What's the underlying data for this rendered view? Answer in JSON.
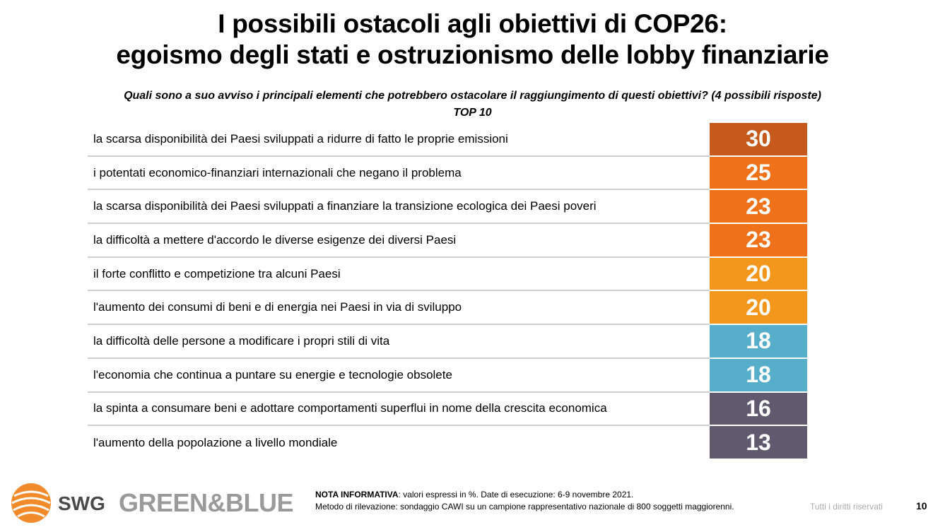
{
  "header": {
    "title_line1": "I possibili ostacoli agli obiettivi di COP26:",
    "title_line2": "egoismo degli stati e ostruzionismo delle lobby finanziarie",
    "question": "Quali sono a suo avviso i principali elementi che potrebbero ostacolare il raggiungimento di questi obiettivi? (4 possibili risposte)",
    "subtitle": "TOP 10"
  },
  "chart_data": {
    "type": "table",
    "title": "I possibili ostacoli agli obiettivi di COP26: egoismo degli stati e ostruzionismo delle lobby finanziarie",
    "categories": [
      "la scarsa disponibilità dei Paesi sviluppati a ridurre di fatto le proprie emissioni",
      "i potentati economico-finanziari internazionali che negano il problema",
      "la scarsa disponibilità dei Paesi sviluppati a finanziare la transizione ecologica dei Paesi poveri",
      "la difficoltà a mettere d'accordo le diverse esigenze dei diversi Paesi",
      "il forte conflitto e competizione tra alcuni Paesi",
      "l'aumento dei consumi di beni e di energia nei Paesi in via di sviluppo",
      "la difficoltà delle persone a modificare i propri stili di vita",
      "l'economia che continua a puntare su energie e tecnologie obsolete",
      "la spinta a consumare beni e adottare comportamenti superflui in nome della crescita economica",
      "l'aumento della popolazione a livello mondiale"
    ],
    "values": [
      30,
      25,
      23,
      23,
      20,
      20,
      18,
      18,
      16,
      13
    ],
    "colors": [
      "#c55a1c",
      "#ef7119",
      "#ef7119",
      "#ef7119",
      "#f3961c",
      "#f3961c",
      "#56aecb",
      "#56aecb",
      "#5f5a6e",
      "#5f5a6e"
    ]
  },
  "footer": {
    "brand1": "SWG",
    "brand2": "GREEN&BLUE",
    "note_label": "NOTA INFORMATIVA",
    "note_text": ": valori espressi in %. Date di esecuzione: 6-9 novembre 2021.",
    "method": "Metodo di rilevazione: sondaggio CAWI su un campione rappresentativo nazionale di 800 soggetti maggiorenni.",
    "rights": "Tutti i diritti riservati",
    "page": "10"
  }
}
